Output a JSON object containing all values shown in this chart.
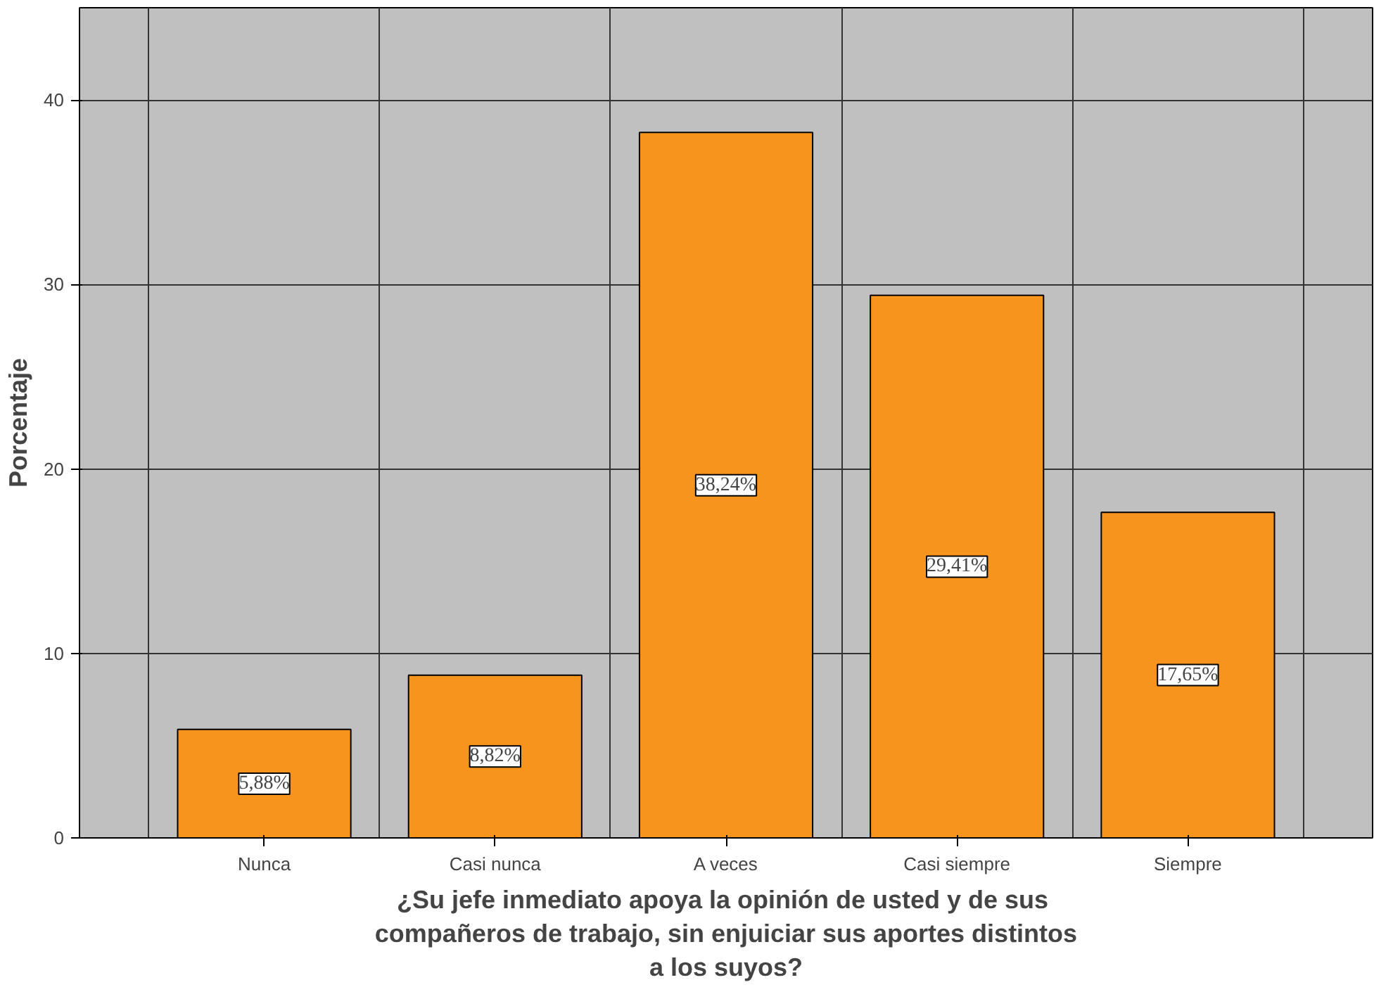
{
  "chart_data": {
    "type": "bar",
    "xlabel": "¿Su jefe inmediato apoya la opinión  de usted y de sus\ncompañeros de trabajo, sin enjuiciar sus aportes distintos\na los suyos?",
    "ylabel": "Porcentaje",
    "categories": [
      "Nunca",
      "Casi nunca",
      "A veces",
      "Casi siempre",
      "Siempre"
    ],
    "values": [
      5.88,
      8.82,
      38.24,
      29.41,
      17.65
    ],
    "value_labels": [
      "5,88%",
      "8,82%",
      "38,24%",
      "29,41%",
      "17,65%"
    ],
    "color": "#f7941d",
    "ylim": [
      0,
      45
    ],
    "yticks": [
      0,
      10,
      20,
      30,
      40
    ],
    "grid": true
  }
}
